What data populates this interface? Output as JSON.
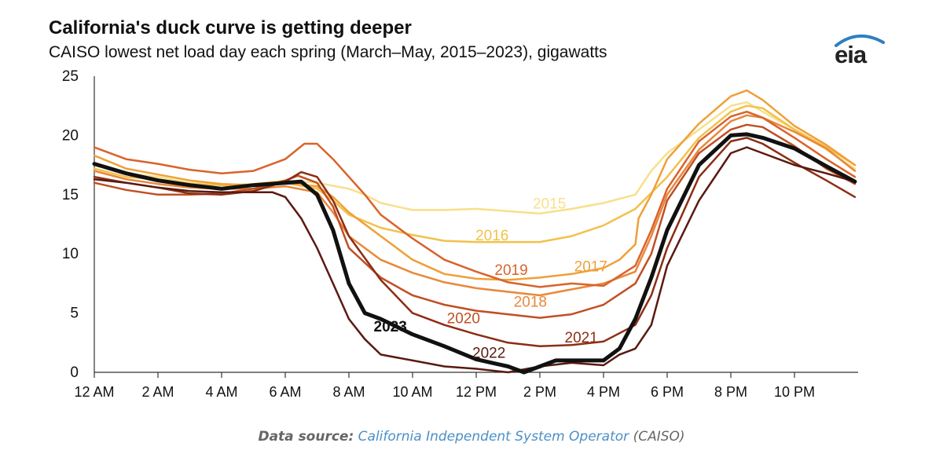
{
  "brand": {
    "logo_text": "eia",
    "logo_color": "#2f7fc1"
  },
  "source": {
    "label": "Data source:",
    "link_text": "California Independent System Operator",
    "suffix": "(CAISO)"
  },
  "chart_data": {
    "type": "line",
    "title": "California's duck curve is getting deeper",
    "subtitle": "CAISO lowest net load day each spring (March–May, 2015–2023), gigawatts",
    "xlabel": "",
    "ylabel": "gigawatts",
    "xlim": [
      0,
      24
    ],
    "ylim": [
      0,
      25
    ],
    "xticks": [
      {
        "v": 0,
        "label": "12 AM"
      },
      {
        "v": 2,
        "label": "2 AM"
      },
      {
        "v": 4,
        "label": "4 AM"
      },
      {
        "v": 6,
        "label": "6 AM"
      },
      {
        "v": 8,
        "label": "8 AM"
      },
      {
        "v": 10,
        "label": "10 AM"
      },
      {
        "v": 12,
        "label": "12 PM"
      },
      {
        "v": 14,
        "label": "2 PM"
      },
      {
        "v": 16,
        "label": "4 PM"
      },
      {
        "v": 18,
        "label": "6 PM"
      },
      {
        "v": 20,
        "label": "8 PM"
      },
      {
        "v": 22,
        "label": "10 PM"
      }
    ],
    "yticks": [
      0,
      5,
      10,
      15,
      20,
      25
    ],
    "grid": false,
    "series": [
      {
        "name": "2015",
        "color": "#f7e08a",
        "width": 2.5,
        "label_at": [
          14.3,
          14.3
        ],
        "points": [
          [
            0,
            17.5
          ],
          [
            1,
            16.8
          ],
          [
            2,
            16.5
          ],
          [
            3,
            16.0
          ],
          [
            4,
            15.8
          ],
          [
            5,
            15.9
          ],
          [
            6,
            16.2
          ],
          [
            7,
            16.0
          ],
          [
            8,
            15.5
          ],
          [
            8.5,
            15.0
          ],
          [
            9,
            14.3
          ],
          [
            10,
            13.7
          ],
          [
            11,
            13.7
          ],
          [
            12,
            13.8
          ],
          [
            13,
            13.6
          ],
          [
            14,
            13.4
          ],
          [
            15,
            13.8
          ],
          [
            16,
            14.3
          ],
          [
            17,
            15.0
          ],
          [
            17.5,
            17.0
          ],
          [
            18,
            18.5
          ],
          [
            19,
            20.5
          ],
          [
            20,
            22.5
          ],
          [
            20.5,
            22.8
          ],
          [
            21,
            22.0
          ],
          [
            22,
            20.5
          ],
          [
            23,
            18.8
          ],
          [
            23.9,
            17.2
          ]
        ]
      },
      {
        "name": "2016",
        "color": "#f2c14a",
        "width": 2.5,
        "label_at": [
          12.5,
          11.6
        ],
        "points": [
          [
            0,
            17.2
          ],
          [
            1,
            16.5
          ],
          [
            2,
            16.3
          ],
          [
            3,
            15.9
          ],
          [
            4,
            15.8
          ],
          [
            5,
            15.8
          ],
          [
            6,
            16.0
          ],
          [
            7,
            15.5
          ],
          [
            7.5,
            14.5
          ],
          [
            8,
            13.3
          ],
          [
            9,
            12.2
          ],
          [
            10,
            11.6
          ],
          [
            11,
            11.1
          ],
          [
            12,
            11.0
          ],
          [
            13,
            11.0
          ],
          [
            14,
            11.0
          ],
          [
            15,
            11.5
          ],
          [
            16,
            12.4
          ],
          [
            17,
            13.8
          ],
          [
            18,
            16.5
          ],
          [
            19,
            19.8
          ],
          [
            20,
            22.0
          ],
          [
            20.5,
            22.5
          ],
          [
            21,
            22.3
          ],
          [
            22,
            20.5
          ],
          [
            23,
            19.0
          ],
          [
            23.9,
            17.5
          ]
        ]
      },
      {
        "name": "2017",
        "color": "#eea038",
        "width": 2.5,
        "label_at": [
          15.6,
          9.0
        ],
        "points": [
          [
            0,
            18.3
          ],
          [
            1,
            17.2
          ],
          [
            2,
            16.7
          ],
          [
            3,
            16.2
          ],
          [
            4,
            15.9
          ],
          [
            5,
            15.8
          ],
          [
            6,
            16.0
          ],
          [
            7,
            15.7
          ],
          [
            7.5,
            14.8
          ],
          [
            8,
            13.5
          ],
          [
            9,
            11.5
          ],
          [
            10,
            9.5
          ],
          [
            11,
            8.3
          ],
          [
            12,
            7.9
          ],
          [
            13,
            7.8
          ],
          [
            14,
            8.0
          ],
          [
            15,
            8.3
          ],
          [
            16,
            8.8
          ],
          [
            16.5,
            9.5
          ],
          [
            17,
            10.8
          ],
          [
            17.1,
            13.0
          ],
          [
            17.5,
            15.0
          ],
          [
            18,
            18.0
          ],
          [
            19,
            21.0
          ],
          [
            20,
            23.3
          ],
          [
            20.5,
            23.8
          ],
          [
            21,
            23.0
          ],
          [
            22,
            20.8
          ],
          [
            23,
            19.2
          ],
          [
            23.9,
            17.5
          ]
        ]
      },
      {
        "name": "2018",
        "color": "#e8883a",
        "width": 2.5,
        "label_at": [
          13.7,
          6.0
        ],
        "points": [
          [
            0,
            17.0
          ],
          [
            1,
            16.3
          ],
          [
            2,
            15.9
          ],
          [
            3,
            15.6
          ],
          [
            4,
            15.5
          ],
          [
            5,
            15.5
          ],
          [
            6,
            15.7
          ],
          [
            7,
            15.2
          ],
          [
            7.5,
            13.5
          ],
          [
            8,
            11.5
          ],
          [
            9,
            9.5
          ],
          [
            10,
            8.4
          ],
          [
            11,
            7.6
          ],
          [
            12,
            7.1
          ],
          [
            13,
            6.8
          ],
          [
            14,
            6.5
          ],
          [
            15,
            7.0
          ],
          [
            16,
            7.5
          ],
          [
            17,
            8.5
          ],
          [
            17.5,
            11.5
          ],
          [
            18,
            15.0
          ],
          [
            19,
            18.8
          ],
          [
            20,
            21.2
          ],
          [
            20.5,
            21.7
          ],
          [
            21,
            21.5
          ],
          [
            22,
            20.3
          ],
          [
            23,
            18.9
          ],
          [
            23.9,
            17.0
          ]
        ]
      },
      {
        "name": "2019",
        "color": "#d9632b",
        "width": 2.5,
        "label_at": [
          13.1,
          8.7
        ],
        "points": [
          [
            0,
            19.0
          ],
          [
            1,
            18.0
          ],
          [
            2,
            17.6
          ],
          [
            3,
            17.1
          ],
          [
            4,
            16.8
          ],
          [
            5,
            17.0
          ],
          [
            6,
            18.0
          ],
          [
            6.6,
            19.3
          ],
          [
            7,
            19.3
          ],
          [
            7.5,
            18.0
          ],
          [
            8,
            16.5
          ],
          [
            8.5,
            15.0
          ],
          [
            9,
            13.3
          ],
          [
            10,
            11.3
          ],
          [
            11,
            9.5
          ],
          [
            12,
            8.5
          ],
          [
            13,
            7.6
          ],
          [
            14,
            7.2
          ],
          [
            15,
            7.5
          ],
          [
            16,
            7.3
          ],
          [
            17,
            9.0
          ],
          [
            17.5,
            12.0
          ],
          [
            18,
            15.5
          ],
          [
            19,
            19.5
          ],
          [
            20,
            21.6
          ],
          [
            20.5,
            22.0
          ],
          [
            21,
            21.5
          ],
          [
            22,
            19.8
          ],
          [
            23,
            18.0
          ],
          [
            23.9,
            16.5
          ]
        ]
      },
      {
        "name": "2020",
        "color": "#c04f25",
        "width": 2.5,
        "label_at": [
          11.6,
          4.6
        ],
        "points": [
          [
            0,
            16.0
          ],
          [
            1,
            15.4
          ],
          [
            2,
            15.0
          ],
          [
            3,
            15.0
          ],
          [
            4,
            15.1
          ],
          [
            5,
            15.5
          ],
          [
            6,
            16.2
          ],
          [
            6.4,
            16.6
          ],
          [
            7,
            16.0
          ],
          [
            7.5,
            14.0
          ],
          [
            8,
            10.5
          ],
          [
            9,
            8.0
          ],
          [
            10,
            6.5
          ],
          [
            11,
            5.7
          ],
          [
            12,
            5.2
          ],
          [
            13,
            4.9
          ],
          [
            14,
            4.6
          ],
          [
            15,
            4.9
          ],
          [
            16,
            5.7
          ],
          [
            17,
            7.5
          ],
          [
            17.5,
            10.0
          ],
          [
            18,
            14.5
          ],
          [
            19,
            18.5
          ],
          [
            20,
            20.5
          ],
          [
            20.5,
            20.9
          ],
          [
            21,
            20.7
          ],
          [
            22,
            19.1
          ],
          [
            23,
            17.2
          ],
          [
            23.9,
            15.9
          ]
        ]
      },
      {
        "name": "2021",
        "color": "#8c2e14",
        "width": 2.5,
        "label_at": [
          15.3,
          3.0
        ],
        "points": [
          [
            0,
            16.5
          ],
          [
            1,
            16.0
          ],
          [
            2,
            15.6
          ],
          [
            3,
            15.1
          ],
          [
            4,
            15.0
          ],
          [
            5,
            15.3
          ],
          [
            6,
            16.1
          ],
          [
            6.5,
            16.9
          ],
          [
            7,
            16.5
          ],
          [
            7.5,
            14.5
          ],
          [
            8,
            11.5
          ],
          [
            9,
            7.8
          ],
          [
            10,
            5.0
          ],
          [
            11,
            4.0
          ],
          [
            12,
            3.2
          ],
          [
            13,
            2.5
          ],
          [
            14,
            2.2
          ],
          [
            15,
            2.3
          ],
          [
            16,
            2.6
          ],
          [
            17,
            4.0
          ],
          [
            17.5,
            6.5
          ],
          [
            18,
            10.5
          ],
          [
            19,
            16.5
          ],
          [
            20,
            19.5
          ],
          [
            20.5,
            19.8
          ],
          [
            21,
            19.3
          ],
          [
            22,
            17.7
          ],
          [
            23,
            16.2
          ],
          [
            23.9,
            14.8
          ]
        ]
      },
      {
        "name": "2022",
        "color": "#5a1a10",
        "width": 2.5,
        "label_at": [
          12.4,
          1.7
        ],
        "points": [
          [
            0,
            16.3
          ],
          [
            1,
            16.0
          ],
          [
            2,
            15.6
          ],
          [
            3,
            15.3
          ],
          [
            4,
            15.2
          ],
          [
            5,
            15.2
          ],
          [
            5.6,
            15.2
          ],
          [
            6,
            14.8
          ],
          [
            6.5,
            13.0
          ],
          [
            7,
            10.5
          ],
          [
            7.5,
            7.5
          ],
          [
            8,
            4.5
          ],
          [
            8.5,
            2.8
          ],
          [
            9,
            1.5
          ],
          [
            10,
            1.0
          ],
          [
            11,
            0.5
          ],
          [
            12,
            0.3
          ],
          [
            13,
            0.0
          ],
          [
            14,
            0.5
          ],
          [
            15,
            0.8
          ],
          [
            16,
            0.6
          ],
          [
            16.5,
            1.5
          ],
          [
            17,
            2.0
          ],
          [
            17.5,
            4.0
          ],
          [
            18,
            9.0
          ],
          [
            19,
            14.5
          ],
          [
            20,
            18.5
          ],
          [
            20.5,
            19.0
          ],
          [
            21,
            18.5
          ],
          [
            22,
            17.5
          ],
          [
            23,
            16.8
          ],
          [
            23.9,
            16.1
          ]
        ]
      },
      {
        "name": "2023",
        "color": "#111111",
        "width": 5,
        "label_at": [
          9.3,
          3.9
        ],
        "points": [
          [
            0,
            17.6
          ],
          [
            1,
            16.8
          ],
          [
            2,
            16.2
          ],
          [
            3,
            15.8
          ],
          [
            4,
            15.5
          ],
          [
            5,
            15.8
          ],
          [
            6,
            16.0
          ],
          [
            6.5,
            16.1
          ],
          [
            7,
            15.0
          ],
          [
            7.5,
            12.0
          ],
          [
            8,
            7.5
          ],
          [
            8.5,
            5.0
          ],
          [
            9,
            4.5
          ],
          [
            10,
            3.2
          ],
          [
            11,
            2.2
          ],
          [
            12,
            1.1
          ],
          [
            13,
            0.5
          ],
          [
            13.5,
            0.0
          ],
          [
            14,
            0.5
          ],
          [
            14.5,
            1.0
          ],
          [
            15,
            1.0
          ],
          [
            16,
            1.0
          ],
          [
            16.5,
            2.0
          ],
          [
            17,
            4.5
          ],
          [
            17.5,
            8.0
          ],
          [
            18,
            12.0
          ],
          [
            19,
            17.5
          ],
          [
            20,
            20.0
          ],
          [
            20.5,
            20.1
          ],
          [
            21,
            19.8
          ],
          [
            22,
            18.9
          ],
          [
            23,
            17.4
          ],
          [
            23.9,
            16.1
          ]
        ]
      }
    ]
  }
}
